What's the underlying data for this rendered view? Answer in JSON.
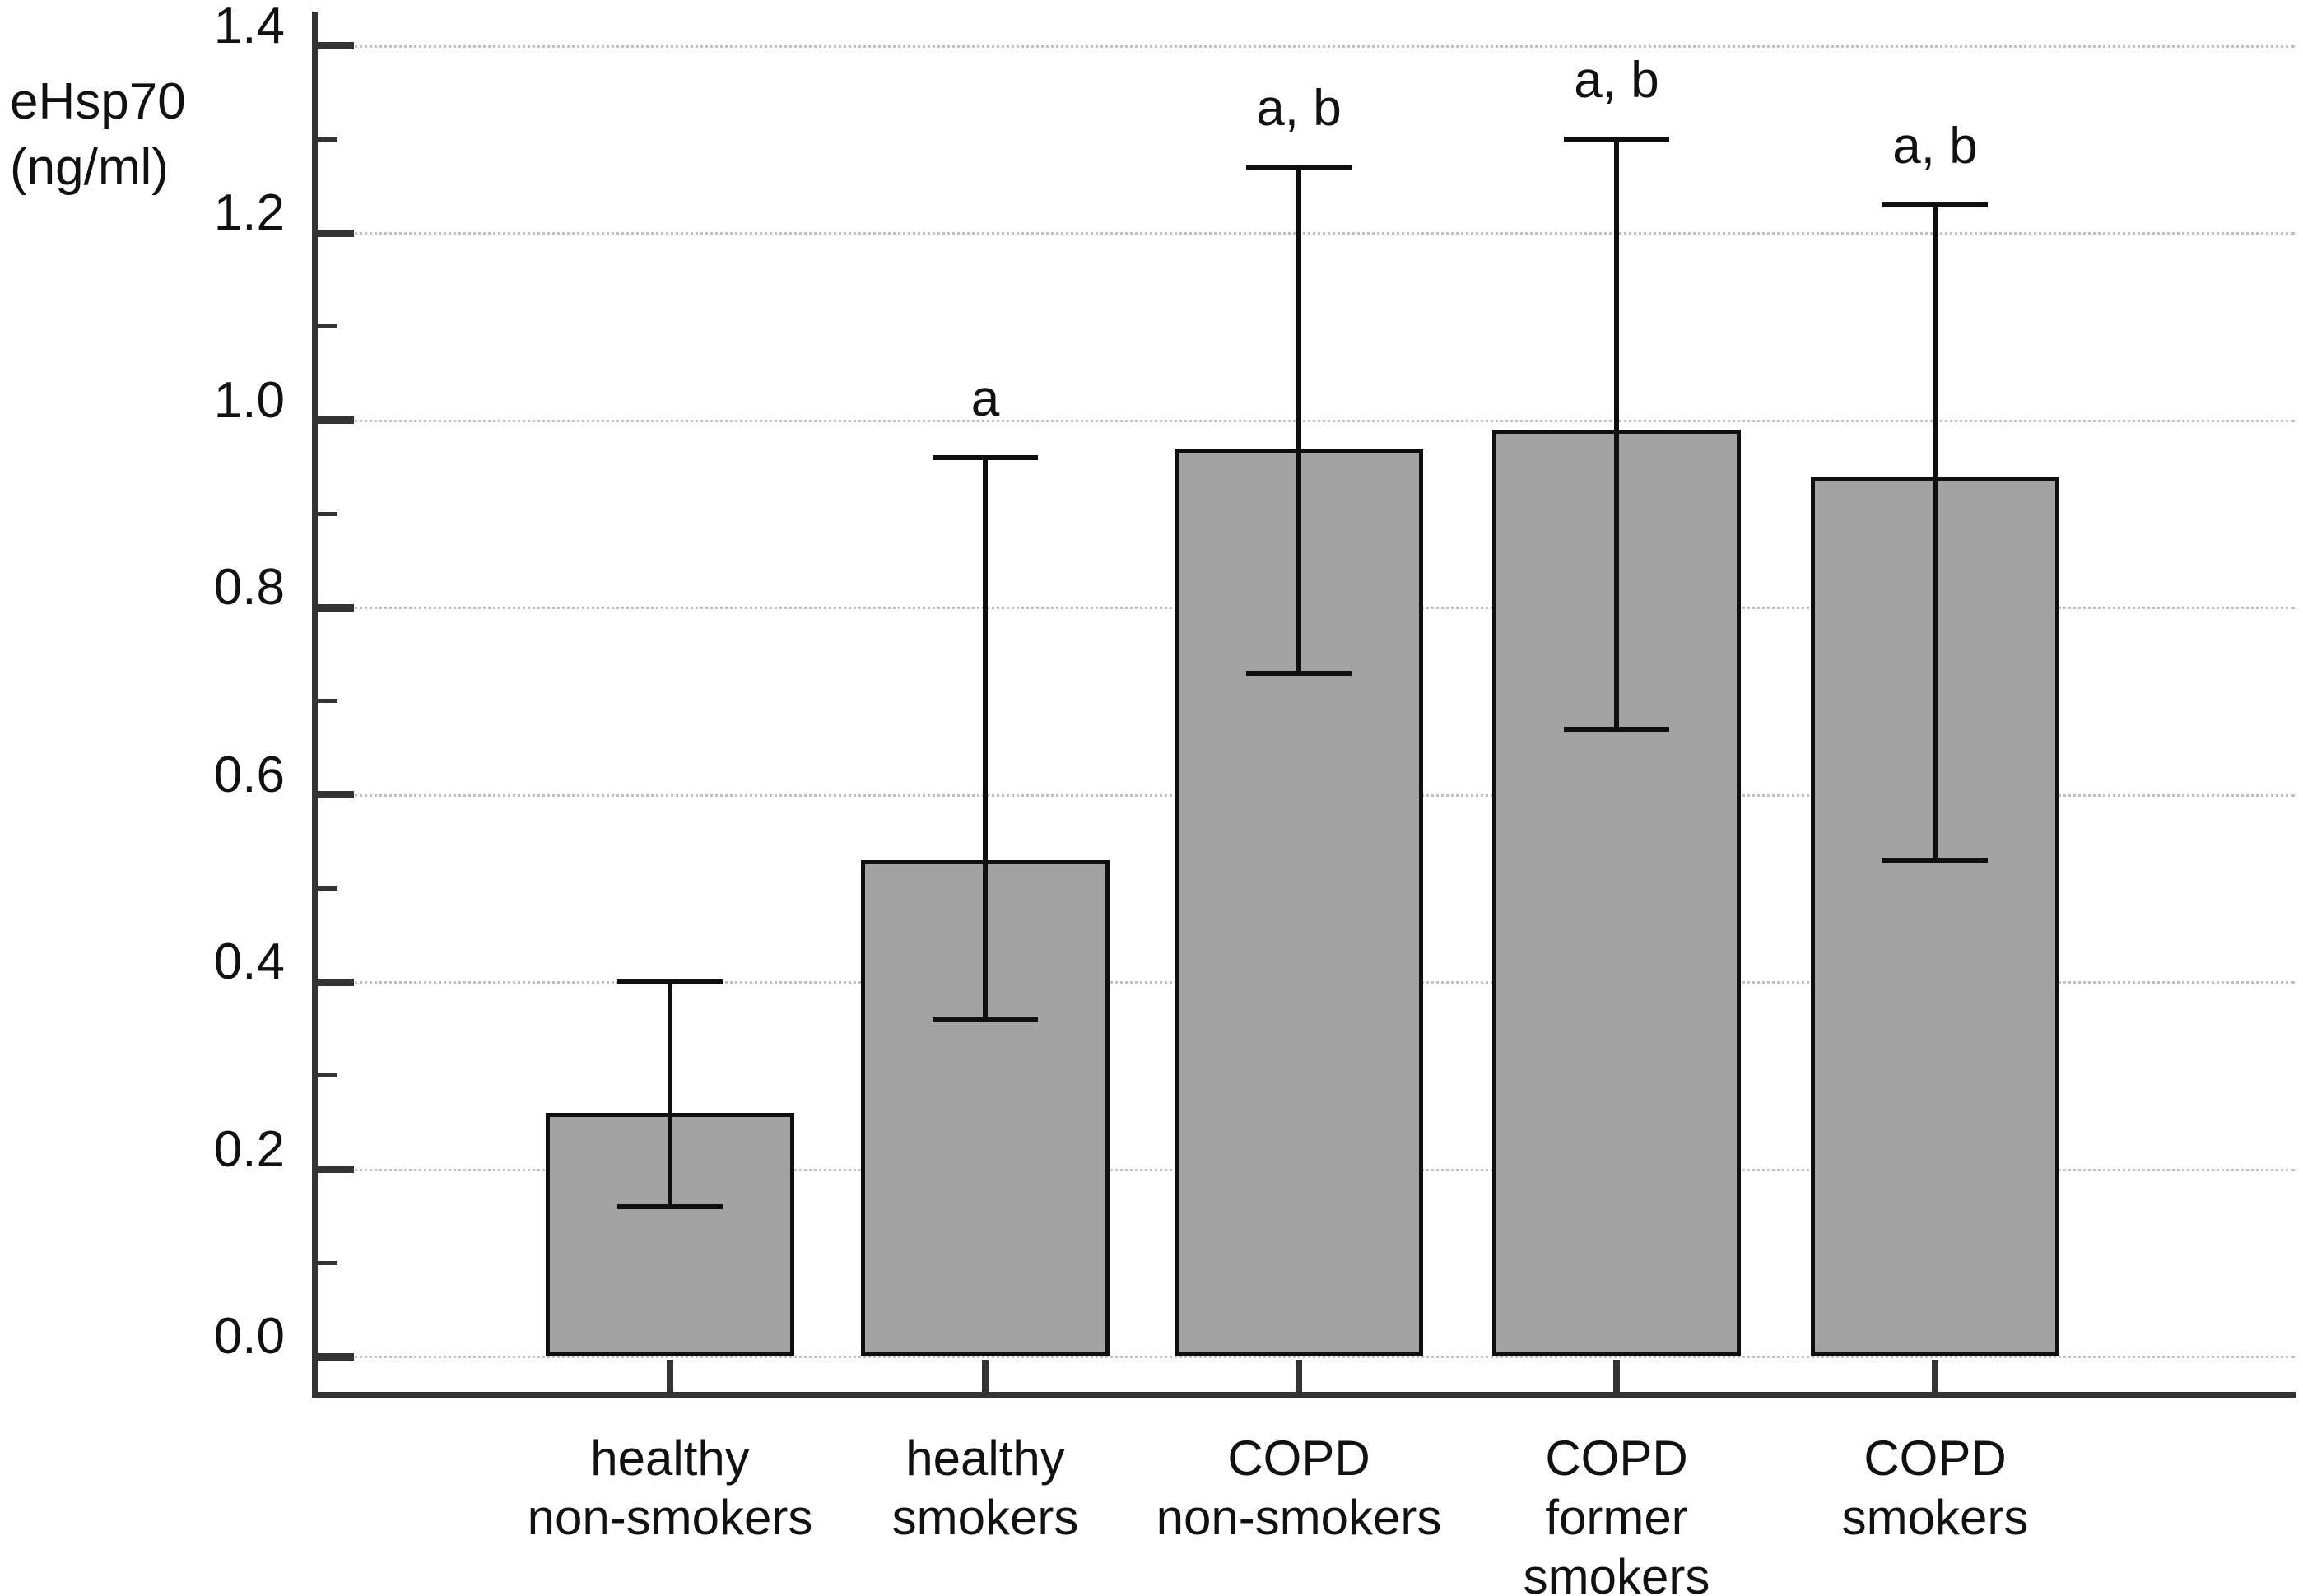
{
  "figure": {
    "ylabel_line1": "eHsp70",
    "ylabel_line2": "(ng/ml)"
  },
  "chart_data": {
    "type": "bar",
    "title": "",
    "ylabel": "eHsp70 (ng/ml)",
    "xlabel": "",
    "categories": [
      "healthy non-smokers",
      "healthy smokers",
      "COPD non-smokers",
      "COPD former smokers",
      "COPD smokers"
    ],
    "category_lines": [
      [
        "healthy",
        "non-smokers"
      ],
      [
        "healthy",
        "smokers"
      ],
      [
        "COPD",
        "non-smokers"
      ],
      [
        "COPD",
        "former",
        "smokers"
      ],
      [
        "COPD",
        "smokers"
      ]
    ],
    "values": [
      0.26,
      0.53,
      0.97,
      0.99,
      0.94
    ],
    "error_high_abs": [
      0.4,
      0.96,
      1.27,
      1.3,
      1.23
    ],
    "error_low_abs": [
      0.16,
      0.36,
      0.73,
      0.67,
      0.53
    ],
    "significance_labels": [
      "",
      "a",
      "a, b",
      "a, b",
      "a, b"
    ],
    "ylim": [
      0,
      1.4
    ],
    "yticks": [
      0.0,
      0.2,
      0.4,
      0.6,
      0.8,
      1.0,
      1.2,
      1.4
    ],
    "ytick_labels": [
      "0.0",
      "0.2",
      "0.4",
      "0.6",
      "0.8",
      "1.0",
      "1.2",
      "1.4"
    ],
    "minor_ytick_step": 0.1,
    "grid": "horizontal dotted lines at each major tick",
    "legend": "none",
    "colors": {
      "bar_fill": "#a3a3a3",
      "bar_border": "#0f0f0f",
      "error_bar": "#0f0f0f",
      "axis": "#333333",
      "gridline": "#bfbfbf",
      "text": "#111111",
      "background": "#ffffff"
    }
  }
}
